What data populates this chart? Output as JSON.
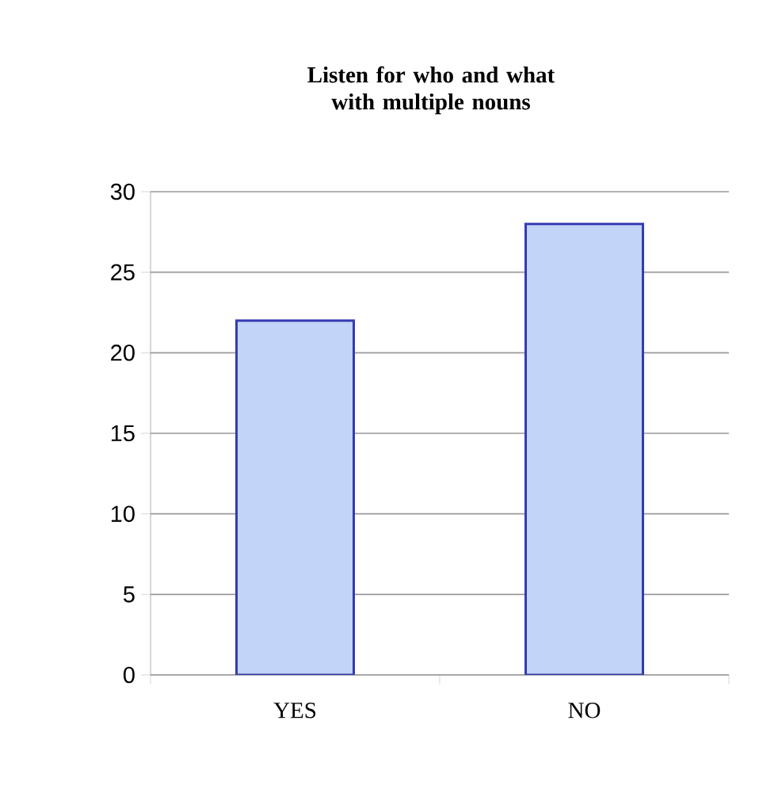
{
  "chart_data": {
    "type": "bar",
    "title": "Listen for who and what with multiple nouns",
    "categories": [
      "YES",
      "NO"
    ],
    "values": [
      22,
      28
    ],
    "color": "#c2d4f7",
    "ylim": [
      0,
      30
    ],
    "yticks": [
      0,
      5,
      10,
      15,
      20,
      25,
      30
    ],
    "grid": "y"
  }
}
